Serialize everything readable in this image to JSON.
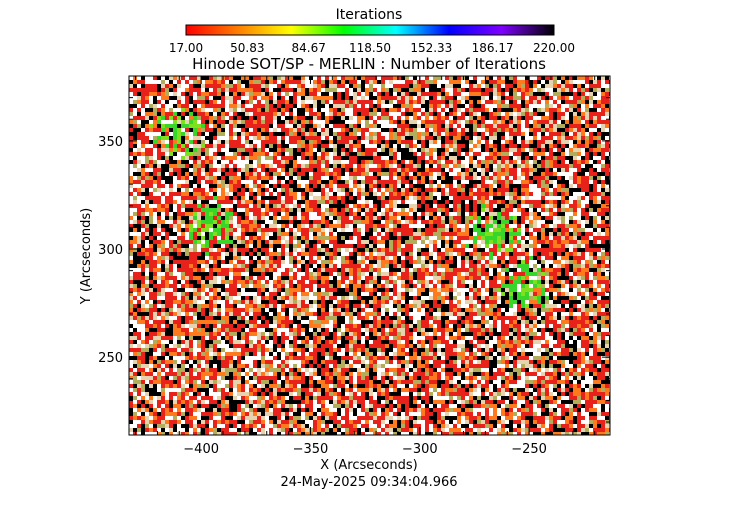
{
  "colorbar": {
    "label": "Iterations",
    "ticks": [
      "17.00",
      "50.83",
      "84.67",
      "118.50",
      "152.33",
      "186.17",
      "220.00"
    ],
    "range": [
      17,
      220
    ],
    "colormap": [
      "#ff0000",
      "#ff7f00",
      "#ffff00",
      "#00ff00",
      "#00ffff",
      "#0000ff",
      "#7f00ff",
      "#000000"
    ]
  },
  "chart_data": {
    "type": "heatmap",
    "title": "Hinode SOT/SP - MERLIN : Number of Iterations",
    "xlabel": "X (Arcseconds)",
    "ylabel": "Y (Arcseconds)",
    "xlim": [
      -433,
      -213
    ],
    "ylim": [
      214,
      380
    ],
    "xticks": [
      -400,
      -350,
      -300,
      -250
    ],
    "yticks": [
      250,
      300,
      350
    ],
    "xtick_labels": [
      "−400",
      "−350",
      "−300",
      "−250"
    ],
    "ytick_labels": [
      "250",
      "300",
      "350"
    ],
    "value_range": [
      17,
      220
    ],
    "description_of_values": "noisy per-pixel iteration counts; dominant colors red, orange, white, black with green clusters",
    "green_clusters": [
      {
        "x": -395,
        "y": 311
      },
      {
        "x": -412,
        "y": 354
      },
      {
        "x": -253,
        "y": 284
      },
      {
        "x": -267,
        "y": 308
      }
    ]
  },
  "timestamp": "24-May-2025 09:34:04.966"
}
